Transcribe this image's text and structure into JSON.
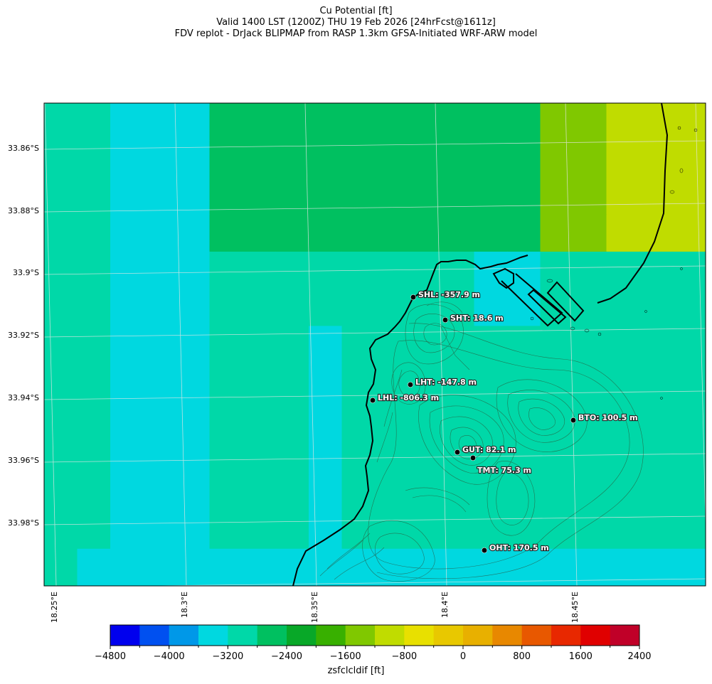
{
  "title": {
    "line1": "Cu Potential [ft]",
    "line2": "Valid 1400 LST (1200Z) THU 19 Feb 2026 [24hrFcst@1611z]",
    "line3": "FDV replot - DrJack BLIPMAP from RASP 1.3km GFSA-Initiated WRF-ARW model"
  },
  "map": {
    "lat_ticks": [
      "33.86°S",
      "33.88°S",
      "33.9°S",
      "33.92°S",
      "33.94°S",
      "33.96°S",
      "33.98°S"
    ],
    "lon_ticks": [
      "18.25°E",
      "18.3°E",
      "18.35°E",
      "18.4°E",
      "18.45°E"
    ],
    "stations": [
      {
        "code": "SHL",
        "label": "SHL: -357.9 m"
      },
      {
        "code": "SHT",
        "label": "SHT: 18.6 m"
      },
      {
        "code": "LHT",
        "label": "LHT: -147.8 m"
      },
      {
        "code": "LHL",
        "label": "LHL: -806.3 m"
      },
      {
        "code": "BTO",
        "label": "BTO: 100.5 m"
      },
      {
        "code": "GUT",
        "label": "GUT: 82.1 m"
      },
      {
        "code": "TMT",
        "label": "TMT: 75.3 m"
      },
      {
        "code": "OHT",
        "label": "OHT: 170.5 m"
      }
    ]
  },
  "colorbar": {
    "label": "zsfclcldif [ft]",
    "tick_labels": [
      "−4800",
      "−4000",
      "−3200",
      "−2400",
      "−1600",
      "−800",
      "0",
      "800",
      "1600",
      "2400"
    ],
    "min": -4800,
    "max": 2400,
    "step": 400,
    "colors": [
      "#0000ee",
      "#0050f0",
      "#0098e8",
      "#00d8e0",
      "#00d8a8",
      "#00c060",
      "#08a828",
      "#38b000",
      "#80c800",
      "#c0dc00",
      "#e8e000",
      "#e8c800",
      "#e8b000",
      "#e88800",
      "#e85800",
      "#e82800",
      "#e00000",
      "#c00028"
    ]
  },
  "grid_levels": [
    [
      4,
      4,
      3,
      3,
      3,
      5,
      5,
      5,
      5,
      5,
      5,
      5,
      5,
      5,
      5,
      8,
      8,
      9,
      9,
      9
    ],
    [
      4,
      4,
      3,
      3,
      3,
      5,
      5,
      5,
      5,
      5,
      5,
      5,
      5,
      5,
      5,
      8,
      8,
      9,
      9,
      9
    ],
    [
      4,
      4,
      3,
      3,
      3,
      5,
      5,
      5,
      5,
      5,
      5,
      5,
      5,
      5,
      5,
      8,
      8,
      9,
      9,
      9
    ],
    [
      4,
      4,
      3,
      3,
      3,
      5,
      5,
      5,
      5,
      5,
      5,
      5,
      5,
      5,
      5,
      8,
      8,
      9,
      9,
      9
    ],
    [
      4,
      4,
      3,
      3,
      3,
      4,
      4,
      4,
      4,
      4,
      4,
      4,
      4,
      3,
      3,
      4,
      4,
      4,
      4,
      4
    ],
    [
      4,
      4,
      3,
      3,
      3,
      4,
      4,
      4,
      4,
      4,
      4,
      4,
      4,
      3,
      3,
      4,
      4,
      4,
      4,
      4
    ],
    [
      4,
      4,
      3,
      3,
      3,
      4,
      4,
      4,
      3,
      4,
      4,
      4,
      4,
      4,
      4,
      4,
      4,
      4,
      4,
      4
    ],
    [
      4,
      4,
      3,
      3,
      3,
      4,
      4,
      4,
      3,
      4,
      4,
      4,
      4,
      4,
      4,
      4,
      4,
      4,
      4,
      4
    ],
    [
      4,
      4,
      3,
      3,
      3,
      4,
      4,
      4,
      3,
      4,
      4,
      4,
      4,
      4,
      4,
      4,
      4,
      4,
      4,
      4
    ],
    [
      4,
      4,
      3,
      3,
      3,
      4,
      4,
      4,
      3,
      4,
      4,
      4,
      4,
      4,
      4,
      4,
      4,
      4,
      4,
      4
    ],
    [
      4,
      4,
      3,
      3,
      3,
      4,
      4,
      4,
      3,
      4,
      4,
      4,
      4,
      4,
      4,
      4,
      4,
      4,
      4,
      4
    ],
    [
      4,
      4,
      3,
      3,
      3,
      4,
      4,
      4,
      3,
      4,
      4,
      4,
      4,
      4,
      4,
      4,
      4,
      4,
      4,
      4
    ],
    [
      4,
      3,
      3,
      3,
      3,
      3,
      3,
      3,
      3,
      3,
      3,
      3,
      3,
      3,
      3,
      3,
      3,
      3,
      3,
      3
    ]
  ]
}
